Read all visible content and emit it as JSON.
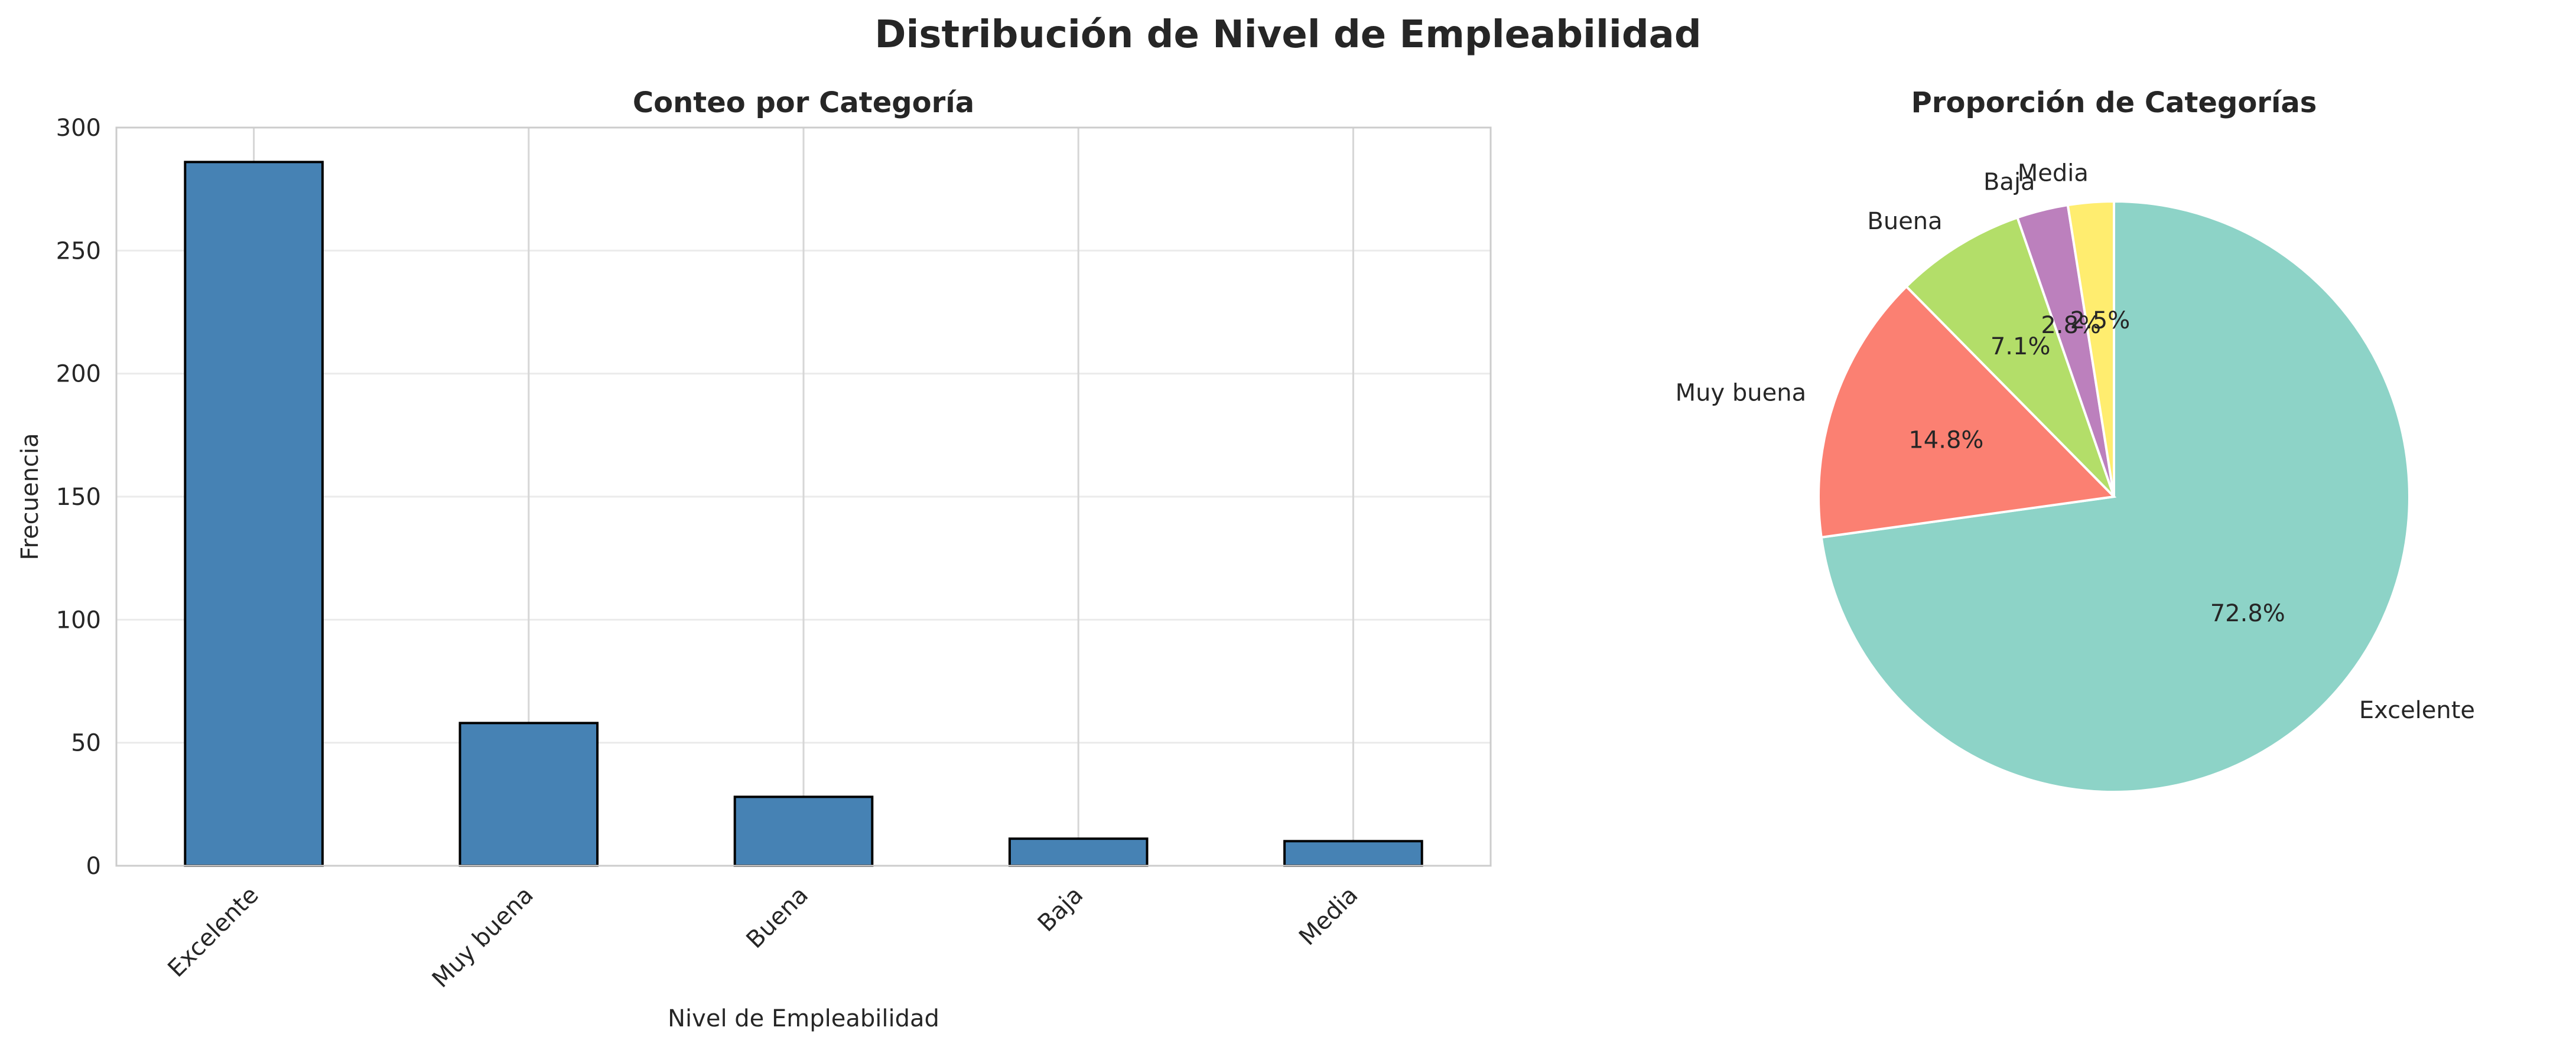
{
  "figure": {
    "title": "Distribución de Nivel de Empleabilidad"
  },
  "chart_data": [
    {
      "type": "bar",
      "title": "Conteo por Categoría",
      "xlabel": "Nivel de Empleabilidad",
      "ylabel": "Frecuencia",
      "categories": [
        "Excelente",
        "Muy buena",
        "Buena",
        "Baja",
        "Media"
      ],
      "values": [
        286,
        58,
        28,
        11,
        10
      ],
      "ylim": [
        0,
        300
      ],
      "yticks": [
        0,
        50,
        100,
        150,
        200,
        250,
        300
      ],
      "grid": true,
      "colors": {
        "bar": "#4682B4",
        "edge": "#000000"
      }
    },
    {
      "type": "pie",
      "title": "Proporción de Categorías",
      "labels": [
        "Excelente",
        "Muy buena",
        "Buena",
        "Baja",
        "Media"
      ],
      "values": [
        72.8,
        14.8,
        7.1,
        2.8,
        2.5
      ],
      "pct_labels": [
        "72.8%",
        "14.8%",
        "7.1%",
        "2.8%",
        "2.5%"
      ],
      "colors": [
        "#8DD3C7",
        "#FB8072",
        "#B3DE69",
        "#BC80BD",
        "#FFED6F"
      ]
    }
  ]
}
